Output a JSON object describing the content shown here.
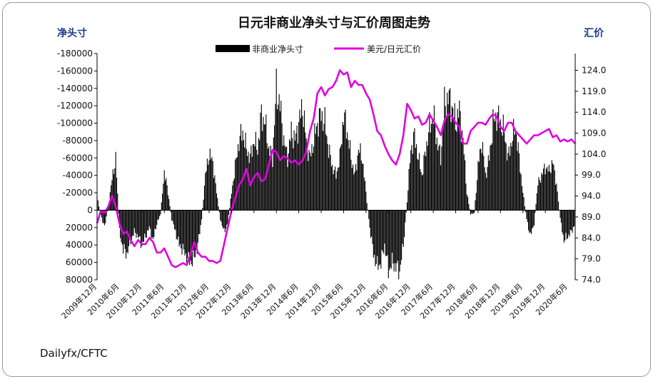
{
  "chart_data": {
    "type": "bar+line",
    "title": "日元非商业净头寸与汇价周图走势",
    "left_axis_title": "净头寸",
    "right_axis_title": "汇价",
    "source": "Dailyfx/CFTC",
    "legend": [
      {
        "label": "非商业净头寸",
        "color": "#000000"
      },
      {
        "label": "美元/日元汇价",
        "color": "#e000e0"
      }
    ],
    "left_axis": {
      "inverted": true,
      "range": [
        -180000,
        80000
      ],
      "ticks": [
        -180000,
        -160000,
        -140000,
        -120000,
        -100000,
        -80000,
        -60000,
        -40000,
        -20000,
        0,
        20000,
        40000,
        60000,
        80000
      ],
      "tick_labels": [
        "-180000",
        "-160000",
        "-140000",
        "-120000",
        "-100000",
        "-80000",
        "-60000",
        "-40000",
        "-20000",
        "0",
        "20000",
        "40000",
        "60000",
        "80000"
      ]
    },
    "right_axis": {
      "range": [
        74.0,
        128.0
      ],
      "ticks": [
        74,
        79,
        84,
        89,
        94,
        99,
        104,
        109,
        114,
        119,
        124
      ],
      "tick_labels": [
        "74.0",
        "79.0",
        "84.0",
        "89.0",
        "94.0",
        "99.0",
        "104.0",
        "109.0",
        "114.0",
        "119.0",
        "124.0"
      ]
    },
    "x_start": "2009-12",
    "x_end": "2020-08",
    "x_tick_labels": [
      "2009年12月",
      "2010年6月",
      "2010年12月",
      "2011年6月",
      "2011年12月",
      "2012年6月",
      "2012年12月",
      "2013年6月",
      "2013年12月",
      "2014年6月",
      "2014年12月",
      "2015年6月",
      "2015年12月",
      "2016年6月",
      "2016年12月",
      "2017年6月",
      "2017年12月",
      "2018年6月",
      "2018年12月",
      "2019年6月",
      "2019年12月",
      "2020年6月"
    ],
    "x_tick_months": [
      0,
      6,
      12,
      18,
      24,
      30,
      36,
      42,
      48,
      54,
      60,
      66,
      72,
      78,
      84,
      90,
      96,
      102,
      108,
      114,
      120,
      126
    ],
    "net_position": [
      [
        0,
        -15000
      ],
      [
        1,
        5000
      ],
      [
        2,
        20000
      ],
      [
        3,
        -5000
      ],
      [
        4,
        -35000
      ],
      [
        5,
        -60000
      ],
      [
        6,
        25000
      ],
      [
        7,
        45000
      ],
      [
        8,
        50000
      ],
      [
        9,
        35000
      ],
      [
        10,
        25000
      ],
      [
        11,
        30000
      ],
      [
        12,
        40000
      ],
      [
        13,
        30000
      ],
      [
        14,
        20000
      ],
      [
        15,
        35000
      ],
      [
        16,
        15000
      ],
      [
        17,
        5000
      ],
      [
        18,
        -45000
      ],
      [
        19,
        -20000
      ],
      [
        20,
        10000
      ],
      [
        21,
        25000
      ],
      [
        22,
        40000
      ],
      [
        23,
        45000
      ],
      [
        24,
        55000
      ],
      [
        25,
        60000
      ],
      [
        26,
        55000
      ],
      [
        27,
        40000
      ],
      [
        28,
        10000
      ],
      [
        29,
        -40000
      ],
      [
        30,
        -65000
      ],
      [
        31,
        -55000
      ],
      [
        32,
        -20000
      ],
      [
        33,
        10000
      ],
      [
        34,
        25000
      ],
      [
        35,
        15000
      ],
      [
        36,
        -20000
      ],
      [
        37,
        -50000
      ],
      [
        38,
        -80000
      ],
      [
        39,
        -90000
      ],
      [
        40,
        -70000
      ],
      [
        41,
        -60000
      ],
      [
        42,
        -80000
      ],
      [
        43,
        -70000
      ],
      [
        44,
        -110000
      ],
      [
        45,
        -100000
      ],
      [
        46,
        -70000
      ],
      [
        47,
        -60000
      ],
      [
        48,
        -140000
      ],
      [
        49,
        -120000
      ],
      [
        50,
        -80000
      ],
      [
        51,
        -60000
      ],
      [
        52,
        -90000
      ],
      [
        53,
        -80000
      ],
      [
        54,
        -100000
      ],
      [
        55,
        -120000
      ],
      [
        56,
        -80000
      ],
      [
        57,
        -60000
      ],
      [
        58,
        -80000
      ],
      [
        59,
        -100000
      ],
      [
        60,
        -110000
      ],
      [
        61,
        -100000
      ],
      [
        62,
        -70000
      ],
      [
        63,
        -50000
      ],
      [
        64,
        -40000
      ],
      [
        65,
        -60000
      ],
      [
        66,
        -110000
      ],
      [
        67,
        -90000
      ],
      [
        68,
        -60000
      ],
      [
        69,
        -40000
      ],
      [
        70,
        -70000
      ],
      [
        71,
        -60000
      ],
      [
        72,
        -20000
      ],
      [
        73,
        20000
      ],
      [
        74,
        50000
      ],
      [
        75,
        65000
      ],
      [
        76,
        60000
      ],
      [
        77,
        40000
      ],
      [
        78,
        70000
      ],
      [
        79,
        60000
      ],
      [
        80,
        65000
      ],
      [
        81,
        70000
      ],
      [
        82,
        40000
      ],
      [
        83,
        -10000
      ],
      [
        84,
        -70000
      ],
      [
        85,
        -85000
      ],
      [
        86,
        -60000
      ],
      [
        87,
        -40000
      ],
      [
        88,
        -70000
      ],
      [
        89,
        -95000
      ],
      [
        90,
        -110000
      ],
      [
        91,
        -80000
      ],
      [
        92,
        -60000
      ],
      [
        93,
        -120000
      ],
      [
        94,
        -130000
      ],
      [
        95,
        -120000
      ],
      [
        96,
        -100000
      ],
      [
        97,
        -115000
      ],
      [
        98,
        -80000
      ],
      [
        99,
        -20000
      ],
      [
        100,
        5000
      ],
      [
        101,
        3000
      ],
      [
        102,
        -50000
      ],
      [
        103,
        -80000
      ],
      [
        104,
        -40000
      ],
      [
        105,
        -60000
      ],
      [
        106,
        -100000
      ],
      [
        107,
        -110000
      ],
      [
        108,
        -100000
      ],
      [
        109,
        -90000
      ],
      [
        110,
        -60000
      ],
      [
        111,
        -80000
      ],
      [
        112,
        -95000
      ],
      [
        113,
        -60000
      ],
      [
        114,
        -20000
      ],
      [
        115,
        10000
      ],
      [
        116,
        30000
      ],
      [
        117,
        15000
      ],
      [
        118,
        -30000
      ],
      [
        119,
        -40000
      ],
      [
        120,
        -50000
      ],
      [
        121,
        -45000
      ],
      [
        122,
        -55000
      ],
      [
        123,
        -30000
      ],
      [
        124,
        10000
      ],
      [
        125,
        35000
      ],
      [
        126,
        30000
      ],
      [
        127,
        25000
      ],
      [
        128,
        15000
      ]
    ],
    "usdjpy": [
      [
        0,
        87.5
      ],
      [
        1,
        90.5
      ],
      [
        2,
        90.0
      ],
      [
        3,
        91.5
      ],
      [
        4,
        94.0
      ],
      [
        5,
        91.5
      ],
      [
        6,
        87.5
      ],
      [
        7,
        85.0
      ],
      [
        8,
        85.5
      ],
      [
        9,
        83.5
      ],
      [
        10,
        82.0
      ],
      [
        11,
        83.5
      ],
      [
        12,
        82.5
      ],
      [
        13,
        82.5
      ],
      [
        14,
        84.0
      ],
      [
        15,
        83.0
      ],
      [
        16,
        80.5
      ],
      [
        17,
        80.5
      ],
      [
        18,
        81.5
      ],
      [
        19,
        79.5
      ],
      [
        20,
        77.5
      ],
      [
        21,
        77.0
      ],
      [
        22,
        77.5
      ],
      [
        23,
        78.0
      ],
      [
        24,
        77.5
      ],
      [
        25,
        80.0
      ],
      [
        26,
        83.0
      ],
      [
        27,
        80.5
      ],
      [
        28,
        79.5
      ],
      [
        29,
        79.5
      ],
      [
        30,
        78.5
      ],
      [
        31,
        78.5
      ],
      [
        32,
        78.0
      ],
      [
        33,
        78.5
      ],
      [
        34,
        82.5
      ],
      [
        35,
        86.5
      ],
      [
        36,
        90.5
      ],
      [
        37,
        93.5
      ],
      [
        38,
        96.5
      ],
      [
        39,
        98.0
      ],
      [
        40,
        100.5
      ],
      [
        41,
        96.5
      ],
      [
        42,
        98.5
      ],
      [
        43,
        99.5
      ],
      [
        44,
        97.5
      ],
      [
        45,
        98.0
      ],
      [
        46,
        101.5
      ],
      [
        47,
        105.0
      ],
      [
        48,
        104.5
      ],
      [
        49,
        102.5
      ],
      [
        50,
        103.5
      ],
      [
        51,
        103.0
      ],
      [
        52,
        102.0
      ],
      [
        53,
        102.5
      ],
      [
        54,
        101.5
      ],
      [
        55,
        102.5
      ],
      [
        56,
        104.5
      ],
      [
        57,
        109.5
      ],
      [
        58,
        112.5
      ],
      [
        59,
        118.5
      ],
      [
        60,
        120.0
      ],
      [
        61,
        118.0
      ],
      [
        62,
        119.5
      ],
      [
        63,
        120.0
      ],
      [
        64,
        121.5
      ],
      [
        65,
        124.0
      ],
      [
        66,
        123.0
      ],
      [
        67,
        123.5
      ],
      [
        68,
        120.0
      ],
      [
        69,
        121.5
      ],
      [
        70,
        120.5
      ],
      [
        71,
        120.5
      ],
      [
        72,
        118.5
      ],
      [
        73,
        117.0
      ],
      [
        74,
        113.5
      ],
      [
        75,
        109.5
      ],
      [
        76,
        108.5
      ],
      [
        77,
        106.0
      ],
      [
        78,
        104.0
      ],
      [
        79,
        102.5
      ],
      [
        80,
        101.5
      ],
      [
        81,
        104.0
      ],
      [
        82,
        108.5
      ],
      [
        83,
        116.0
      ],
      [
        84,
        114.5
      ],
      [
        85,
        112.5
      ],
      [
        86,
        113.0
      ],
      [
        87,
        111.0
      ],
      [
        88,
        111.5
      ],
      [
        89,
        113.5
      ],
      [
        90,
        112.0
      ],
      [
        91,
        110.5
      ],
      [
        92,
        108.5
      ],
      [
        93,
        112.0
      ],
      [
        94,
        113.5
      ],
      [
        95,
        113.0
      ],
      [
        96,
        111.5
      ],
      [
        97,
        110.5
      ],
      [
        98,
        106.5
      ],
      [
        99,
        106.5
      ],
      [
        100,
        109.5
      ],
      [
        101,
        110.5
      ],
      [
        102,
        111.5
      ],
      [
        103,
        111.5
      ],
      [
        104,
        111.0
      ],
      [
        105,
        112.5
      ],
      [
        106,
        113.5
      ],
      [
        107,
        113.0
      ],
      [
        108,
        110.5
      ],
      [
        109,
        109.5
      ],
      [
        110,
        111.5
      ],
      [
        111,
        111.5
      ],
      [
        112,
        109.5
      ],
      [
        113,
        108.5
      ],
      [
        114,
        107.5
      ],
      [
        115,
        106.5
      ],
      [
        116,
        107.5
      ],
      [
        117,
        108.5
      ],
      [
        118,
        108.5
      ],
      [
        119,
        109.0
      ],
      [
        120,
        109.5
      ],
      [
        121,
        110.0
      ],
      [
        122,
        108.0
      ],
      [
        123,
        108.5
      ],
      [
        124,
        107.0
      ],
      [
        125,
        107.5
      ],
      [
        126,
        107.0
      ],
      [
        127,
        107.5
      ],
      [
        128,
        106.5
      ]
    ]
  },
  "colors": {
    "bars": "#000000",
    "line": "#e000e0",
    "axis_title": "#1a3a8a"
  }
}
